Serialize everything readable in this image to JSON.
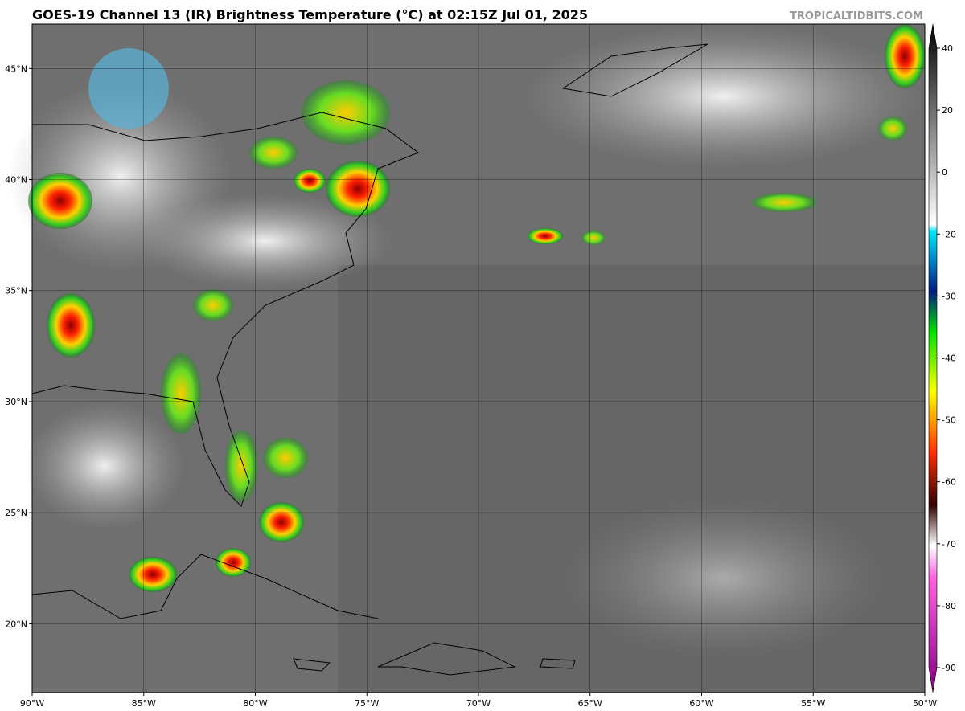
{
  "title": "GOES-19 Channel 13 (IR) Brightness Temperature (°C) at 02:15Z Jul 01, 2025",
  "credit": "TROPICALTIDBITS.COM",
  "map": {
    "xlim": [
      -90,
      -50
    ],
    "ylim": [
      16.9,
      47
    ],
    "xticks": [
      {
        "value": -90,
        "label": "90°W"
      },
      {
        "value": -85,
        "label": "85°W"
      },
      {
        "value": -80,
        "label": "80°W"
      },
      {
        "value": -75,
        "label": "75°W"
      },
      {
        "value": -70,
        "label": "70°W"
      },
      {
        "value": -65,
        "label": "65°W"
      },
      {
        "value": -60,
        "label": "60°W"
      },
      {
        "value": -55,
        "label": "55°W"
      },
      {
        "value": -50,
        "label": "50°W"
      }
    ],
    "yticks": [
      {
        "value": 20,
        "label": "20°N"
      },
      {
        "value": 25,
        "label": "25°N"
      },
      {
        "value": 30,
        "label": "30°N"
      },
      {
        "value": 35,
        "label": "35°N"
      },
      {
        "value": 40,
        "label": "40°N"
      },
      {
        "value": 45,
        "label": "45°N"
      }
    ]
  },
  "colorbar": {
    "ticks": [
      40,
      20,
      0,
      -20,
      -30,
      -40,
      -50,
      -60,
      -70,
      -80,
      -90
    ]
  }
}
